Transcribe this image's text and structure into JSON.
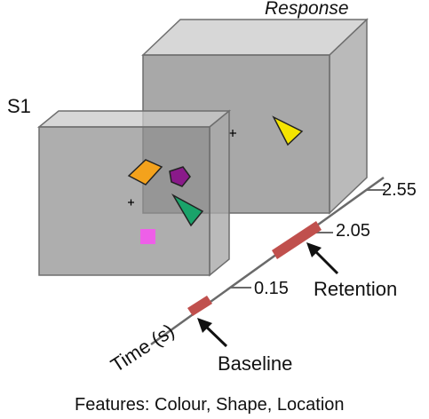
{
  "labels": {
    "response": "Response",
    "s1": "S1",
    "time_axis": "Time (s)",
    "retention": "Retention",
    "baseline": "Baseline",
    "caption": "Features: Colour, Shape, Location"
  },
  "ticks": {
    "t1": "0.15",
    "t2": "2.05",
    "t3": "2.55"
  },
  "colors": {
    "box_fill": "#8f8f8f",
    "box_edge": "#6e6e6e",
    "period_bar": "#c0504d",
    "orange_shape": "#f4a21c",
    "purple_shape": "#8a1a8a",
    "green_shape": "#1aa36a",
    "pink_shape": "#ee5fe8",
    "yellow_shape": "#f4e400"
  },
  "stimuli": {
    "s1_items": [
      "orange-parallelogram",
      "purple-pentagon",
      "green-triangle",
      "pink-square"
    ],
    "response_items": [
      "yellow-triangle"
    ]
  }
}
